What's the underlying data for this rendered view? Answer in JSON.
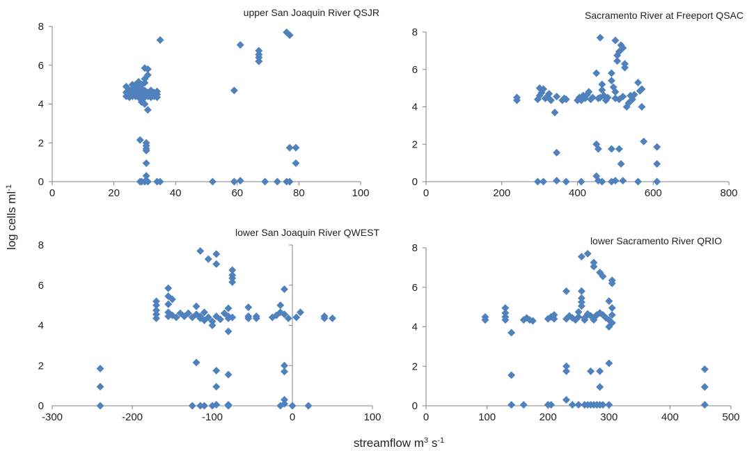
{
  "figure": {
    "ylabel": "log  cells  ml",
    "ylabel_sup": "-1",
    "xlabel_main": "streamflow m",
    "xlabel_sup1": "3",
    "xlabel_mid": " s",
    "xlabel_sup2": "-1",
    "marker_color": "#4f81bd",
    "axis_color": "#808080"
  },
  "chart_data": [
    {
      "type": "scatter",
      "title": "upper San Joaquin River QSJR",
      "xlim": [
        0,
        100
      ],
      "ylim": [
        0,
        8
      ],
      "xticks": [
        0,
        20,
        40,
        60,
        80,
        100
      ],
      "yticks": [
        0,
        2,
        4,
        6,
        8
      ],
      "points": [
        [
          24,
          4.4
        ],
        [
          24,
          4.6
        ],
        [
          24,
          4.9
        ],
        [
          25,
          4.35
        ],
        [
          25,
          4.5
        ],
        [
          25,
          4.7
        ],
        [
          26,
          4.4
        ],
        [
          26,
          4.6
        ],
        [
          26,
          4.8
        ],
        [
          26,
          5.0
        ],
        [
          27,
          4.4
        ],
        [
          27,
          4.55
        ],
        [
          27,
          4.75
        ],
        [
          27,
          5.0
        ],
        [
          28,
          4.35
        ],
        [
          28,
          4.5
        ],
        [
          28,
          4.7
        ],
        [
          28,
          4.95
        ],
        [
          28,
          5.15
        ],
        [
          29,
          4.4
        ],
        [
          29,
          4.6
        ],
        [
          29,
          4.8
        ],
        [
          29,
          5.0
        ],
        [
          29,
          4.2
        ],
        [
          29,
          4.1
        ],
        [
          30,
          4.35
        ],
        [
          30,
          4.5
        ],
        [
          30,
          4.7
        ],
        [
          30,
          5.1
        ],
        [
          30,
          5.3
        ],
        [
          30,
          5.85
        ],
        [
          30,
          4.0
        ],
        [
          31,
          4.4
        ],
        [
          31,
          4.6
        ],
        [
          31,
          5.5
        ],
        [
          31,
          3.7
        ],
        [
          31,
          5.8
        ],
        [
          32,
          4.35
        ],
        [
          32,
          4.55
        ],
        [
          32,
          4.7
        ],
        [
          33,
          4.4
        ],
        [
          33,
          4.6
        ],
        [
          34,
          4.35
        ],
        [
          34,
          4.5
        ],
        [
          34,
          4.65
        ],
        [
          35,
          7.3
        ],
        [
          28.5,
          2.15
        ],
        [
          30.5,
          2.0
        ],
        [
          30.5,
          1.85
        ],
        [
          30.5,
          1.7
        ],
        [
          30.5,
          1.6
        ],
        [
          30.5,
          0.95
        ],
        [
          30.5,
          0.3
        ],
        [
          28.5,
          0.0
        ],
        [
          29,
          0.0
        ],
        [
          30,
          0.0
        ],
        [
          31,
          0.0
        ],
        [
          34,
          0.0
        ],
        [
          35,
          0.0
        ],
        [
          59,
          4.7
        ],
        [
          61,
          7.05
        ],
        [
          67,
          6.75
        ],
        [
          67,
          6.55
        ],
        [
          67,
          6.4
        ],
        [
          67,
          6.2
        ],
        [
          76,
          7.7
        ],
        [
          77,
          7.55
        ],
        [
          77,
          1.75
        ],
        [
          79,
          1.75
        ],
        [
          79,
          0.95
        ],
        [
          52,
          0.0
        ],
        [
          59,
          0.0
        ],
        [
          61,
          0.05
        ],
        [
          69,
          0.0
        ],
        [
          73,
          0.0
        ],
        [
          76,
          0.0
        ],
        [
          77,
          0.0
        ]
      ]
    },
    {
      "type": "scatter",
      "title": "Sacramento River at Freeport QSAC",
      "xlim": [
        0,
        800
      ],
      "ylim": [
        0,
        8
      ],
      "xticks": [
        0,
        200,
        400,
        600,
        800
      ],
      "yticks": [
        0,
        2,
        4,
        6,
        8
      ],
      "points": [
        [
          240,
          4.35
        ],
        [
          240,
          4.5
        ],
        [
          295,
          4.4
        ],
        [
          300,
          4.6
        ],
        [
          300,
          5.0
        ],
        [
          305,
          4.75
        ],
        [
          310,
          4.95
        ],
        [
          315,
          4.45
        ],
        [
          320,
          4.55
        ],
        [
          325,
          4.7
        ],
        [
          330,
          4.35
        ],
        [
          340,
          3.7
        ],
        [
          345,
          4.55
        ],
        [
          360,
          4.35
        ],
        [
          365,
          4.45
        ],
        [
          370,
          4.4
        ],
        [
          400,
          4.35
        ],
        [
          405,
          4.5
        ],
        [
          410,
          4.35
        ],
        [
          415,
          4.6
        ],
        [
          420,
          4.45
        ],
        [
          425,
          4.65
        ],
        [
          430,
          4.8
        ],
        [
          435,
          4.4
        ],
        [
          440,
          4.5
        ],
        [
          450,
          5.8
        ],
        [
          455,
          4.45
        ],
        [
          460,
          4.5
        ],
        [
          460,
          7.7
        ],
        [
          465,
          5.2
        ],
        [
          465,
          4.9
        ],
        [
          470,
          4.6
        ],
        [
          475,
          4.35
        ],
        [
          480,
          4.5
        ],
        [
          490,
          5.8
        ],
        [
          490,
          5.4
        ],
        [
          495,
          5.05
        ],
        [
          500,
          7.55
        ],
        [
          500,
          4.8
        ],
        [
          500,
          4.45
        ],
        [
          505,
          6.75
        ],
        [
          505,
          6.45
        ],
        [
          510,
          6.95
        ],
        [
          510,
          4.4
        ],
        [
          515,
          7.3
        ],
        [
          520,
          7.15
        ],
        [
          520,
          4.55
        ],
        [
          525,
          6.3
        ],
        [
          525,
          6.1
        ],
        [
          530,
          4.0
        ],
        [
          535,
          4.2
        ],
        [
          540,
          4.6
        ],
        [
          545,
          4.4
        ],
        [
          550,
          4.65
        ],
        [
          560,
          5.3
        ],
        [
          565,
          4.85
        ],
        [
          570,
          4.95
        ],
        [
          570,
          4.0
        ],
        [
          345,
          1.55
        ],
        [
          450,
          2.0
        ],
        [
          455,
          1.75
        ],
        [
          490,
          1.75
        ],
        [
          510,
          1.75
        ],
        [
          515,
          0.95
        ],
        [
          575,
          2.15
        ],
        [
          610,
          1.85
        ],
        [
          610,
          0.95
        ],
        [
          295,
          0.0
        ],
        [
          310,
          0.0
        ],
        [
          345,
          0.05
        ],
        [
          370,
          0.0
        ],
        [
          410,
          0.0
        ],
        [
          450,
          0.3
        ],
        [
          455,
          0.05
        ],
        [
          465,
          0.0
        ],
        [
          490,
          0.0
        ],
        [
          500,
          0.05
        ],
        [
          520,
          0.05
        ],
        [
          560,
          0.0
        ],
        [
          610,
          0.0
        ]
      ]
    },
    {
      "type": "scatter",
      "title": "lower San Joaquin River QWEST",
      "xlim": [
        -300,
        100
      ],
      "ylim": [
        0,
        8
      ],
      "xticks": [
        -300,
        -200,
        -100,
        0,
        100
      ],
      "yticks": [
        0,
        2,
        4,
        6,
        8
      ],
      "points": [
        [
          -240,
          1.85
        ],
        [
          -240,
          0.95
        ],
        [
          -240,
          0.0
        ],
        [
          -170,
          4.35
        ],
        [
          -170,
          4.55
        ],
        [
          -170,
          4.75
        ],
        [
          -170,
          5.0
        ],
        [
          -170,
          5.2
        ],
        [
          -155,
          5.85
        ],
        [
          -155,
          5.45
        ],
        [
          -155,
          5.05
        ],
        [
          -155,
          4.65
        ],
        [
          -155,
          4.45
        ],
        [
          -150,
          4.5
        ],
        [
          -150,
          5.3
        ],
        [
          -145,
          4.4
        ],
        [
          -140,
          4.6
        ],
        [
          -135,
          4.45
        ],
        [
          -130,
          4.6
        ],
        [
          -125,
          4.4
        ],
        [
          -120,
          4.95
        ],
        [
          -120,
          4.55
        ],
        [
          -115,
          4.45
        ],
        [
          -115,
          4.35
        ],
        [
          -110,
          4.65
        ],
        [
          -110,
          4.25
        ],
        [
          -105,
          4.4
        ],
        [
          -100,
          4.2
        ],
        [
          -100,
          4.0
        ],
        [
          -95,
          4.45
        ],
        [
          -90,
          4.3
        ],
        [
          -85,
          4.6
        ],
        [
          -80,
          4.85
        ],
        [
          -80,
          4.45
        ],
        [
          -80,
          4.35
        ],
        [
          -80,
          3.7
        ],
        [
          -75,
          4.4
        ],
        [
          -55,
          4.9
        ],
        [
          -55,
          4.45
        ],
        [
          -55,
          4.35
        ],
        [
          -45,
          4.45
        ],
        [
          -45,
          4.35
        ],
        [
          -25,
          4.4
        ],
        [
          -20,
          4.5
        ],
        [
          -15,
          4.65
        ],
        [
          -15,
          5.0
        ],
        [
          -10,
          4.55
        ],
        [
          -10,
          5.8
        ],
        [
          -5,
          4.35
        ],
        [
          5,
          4.4
        ],
        [
          10,
          4.65
        ],
        [
          40,
          4.45
        ],
        [
          40,
          4.35
        ],
        [
          50,
          4.35
        ],
        [
          -115,
          7.7
        ],
        [
          -105,
          7.3
        ],
        [
          -95,
          7.55
        ],
        [
          -95,
          7.05
        ],
        [
          -75,
          6.75
        ],
        [
          -75,
          6.5
        ],
        [
          -75,
          6.35
        ],
        [
          -75,
          6.15
        ],
        [
          -120,
          2.15
        ],
        [
          -95,
          1.75
        ],
        [
          -95,
          0.95
        ],
        [
          -80,
          1.55
        ],
        [
          -10,
          2.0
        ],
        [
          -10,
          1.7
        ],
        [
          -10,
          0.3
        ],
        [
          -125,
          0.0
        ],
        [
          -115,
          0.0
        ],
        [
          -110,
          0.0
        ],
        [
          -100,
          0.0
        ],
        [
          -95,
          0.05
        ],
        [
          -80,
          0.0
        ],
        [
          -80,
          0.05
        ],
        [
          -15,
          0.0
        ],
        [
          -10,
          0.1
        ],
        [
          0,
          0.0
        ],
        [
          20,
          0.0
        ]
      ]
    },
    {
      "type": "scatter",
      "title": "lower Sacramento River QRIO",
      "xlim": [
        0,
        500
      ],
      "ylim": [
        0,
        8
      ],
      "xticks": [
        0,
        100,
        200,
        300,
        400,
        500
      ],
      "yticks": [
        0,
        2,
        4,
        6,
        8
      ],
      "points": [
        [
          97,
          4.35
        ],
        [
          97,
          4.5
        ],
        [
          130,
          4.35
        ],
        [
          130,
          4.5
        ],
        [
          130,
          4.7
        ],
        [
          130,
          4.95
        ],
        [
          140,
          3.7
        ],
        [
          160,
          4.35
        ],
        [
          165,
          4.45
        ],
        [
          170,
          4.35
        ],
        [
          175,
          4.3
        ],
        [
          200,
          4.4
        ],
        [
          205,
          4.5
        ],
        [
          210,
          4.4
        ],
        [
          210,
          4.6
        ],
        [
          230,
          4.4
        ],
        [
          230,
          5.8
        ],
        [
          235,
          4.55
        ],
        [
          240,
          4.45
        ],
        [
          245,
          4.35
        ],
        [
          250,
          4.5
        ],
        [
          250,
          4.75
        ],
        [
          255,
          5.05
        ],
        [
          255,
          5.25
        ],
        [
          255,
          5.45
        ],
        [
          255,
          5.8
        ],
        [
          260,
          4.45
        ],
        [
          260,
          4.35
        ],
        [
          265,
          4.65
        ],
        [
          270,
          4.55
        ],
        [
          275,
          4.45
        ],
        [
          275,
          4.35
        ],
        [
          280,
          4.6
        ],
        [
          285,
          4.7
        ],
        [
          290,
          4.6
        ],
        [
          295,
          4.45
        ],
        [
          300,
          4.35
        ],
        [
          300,
          5.3
        ],
        [
          300,
          4.0
        ],
        [
          305,
          4.95
        ],
        [
          305,
          4.6
        ],
        [
          305,
          4.2
        ],
        [
          305,
          6.35
        ],
        [
          305,
          6.2
        ],
        [
          255,
          7.55
        ],
        [
          265,
          7.7
        ],
        [
          275,
          7.25
        ],
        [
          275,
          7.05
        ],
        [
          285,
          6.75
        ],
        [
          290,
          6.55
        ],
        [
          140,
          1.55
        ],
        [
          230,
          2.0
        ],
        [
          230,
          1.75
        ],
        [
          270,
          1.75
        ],
        [
          285,
          1.75
        ],
        [
          285,
          0.95
        ],
        [
          300,
          2.15
        ],
        [
          457,
          1.85
        ],
        [
          457,
          0.95
        ],
        [
          140,
          0.05
        ],
        [
          160,
          0.05
        ],
        [
          200,
          0.05
        ],
        [
          205,
          0.05
        ],
        [
          230,
          0.3
        ],
        [
          240,
          0.05
        ],
        [
          250,
          0.05
        ],
        [
          260,
          0.05
        ],
        [
          265,
          0.05
        ],
        [
          270,
          0.05
        ],
        [
          275,
          0.05
        ],
        [
          280,
          0.05
        ],
        [
          285,
          0.05
        ],
        [
          290,
          0.05
        ],
        [
          300,
          0.05
        ],
        [
          457,
          0.05
        ]
      ]
    }
  ]
}
